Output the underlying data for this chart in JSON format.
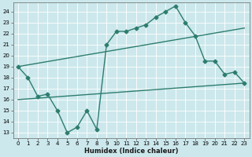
{
  "xlabel": "Humidex (Indice chaleur)",
  "bg_color": "#cce8ec",
  "line_color": "#2d7d6e",
  "grid_color": "#ffffff",
  "xlim": [
    -0.5,
    23.5
  ],
  "ylim": [
    12.5,
    24.8
  ],
  "yticks": [
    13,
    14,
    15,
    16,
    17,
    18,
    19,
    20,
    21,
    22,
    23,
    24
  ],
  "xticks": [
    0,
    1,
    2,
    3,
    4,
    5,
    6,
    7,
    8,
    9,
    10,
    11,
    12,
    13,
    14,
    15,
    16,
    17,
    18,
    19,
    20,
    21,
    22,
    23
  ],
  "line1_x": [
    0,
    1,
    2,
    3,
    4,
    5,
    6,
    7,
    8,
    9,
    10,
    11,
    12,
    13,
    14,
    15,
    16,
    17,
    18,
    19,
    20,
    21,
    22,
    23
  ],
  "line1_y": [
    19.0,
    18.0,
    16.3,
    16.5,
    15.0,
    13.0,
    13.5,
    15.0,
    13.3,
    21.0,
    22.2,
    22.2,
    22.5,
    22.8,
    23.5,
    24.0,
    24.5,
    23.0,
    21.8,
    19.5,
    19.5,
    18.3,
    18.5,
    17.5
  ],
  "line2_x": [
    0,
    23
  ],
  "line2_y": [
    16.0,
    17.5
  ],
  "line3_x": [
    0,
    23
  ],
  "line3_y": [
    19.0,
    22.5
  ],
  "marker": "D",
  "markersize": 2.5,
  "linewidth": 1.0
}
